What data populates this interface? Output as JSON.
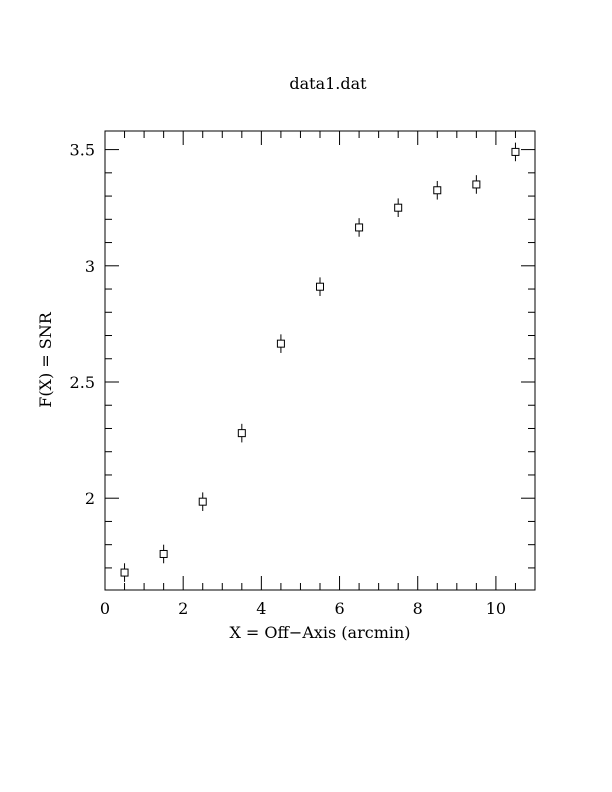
{
  "chart_data": {
    "type": "scatter",
    "title": "data1.dat",
    "xlabel": "X = Off−Axis (arcmin)",
    "ylabel": "F(X) = SNR",
    "xlim": [
      0,
      11
    ],
    "ylim": [
      1.605,
      3.58
    ],
    "x_ticks": [
      0,
      2,
      4,
      6,
      8,
      10
    ],
    "x_tick_labels": [
      "0",
      "2",
      "4",
      "6",
      "8",
      "10"
    ],
    "y_ticks": [
      2,
      2.5,
      3,
      3.5
    ],
    "y_tick_labels": [
      "2",
      "2.5",
      "3",
      "3.5"
    ],
    "x_minor_step": 0.5,
    "y_minor_step": 0.1,
    "marker": "open-square",
    "series": [
      {
        "x": [
          0.5,
          1.5,
          2.5,
          3.5,
          4.5,
          5.5,
          6.5,
          7.5,
          8.5,
          9.5,
          10.5
        ],
        "y": [
          1.68,
          1.76,
          1.985,
          2.28,
          2.665,
          2.91,
          3.165,
          3.25,
          3.325,
          3.35,
          3.49
        ],
        "err": [
          0.04,
          0.04,
          0.04,
          0.04,
          0.04,
          0.04,
          0.04,
          0.04,
          0.04,
          0.04,
          0.04
        ]
      }
    ]
  }
}
